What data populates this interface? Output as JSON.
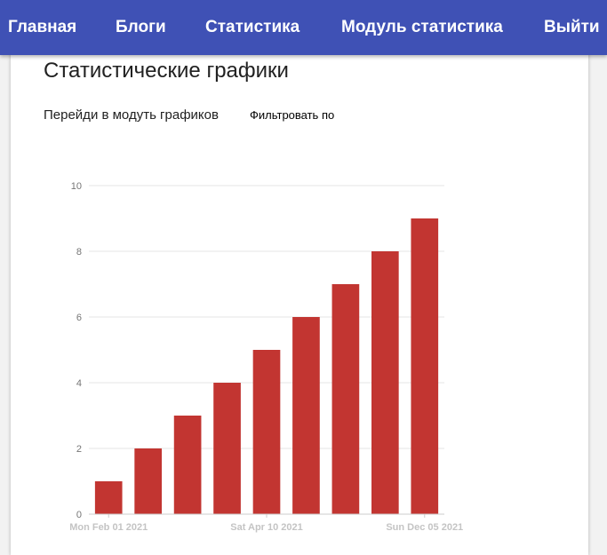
{
  "nav": {
    "items": [
      {
        "label": "Главная"
      },
      {
        "label": "Блоги"
      },
      {
        "label": "Статистика"
      },
      {
        "label": "Модуль статистика"
      },
      {
        "label": "Выйти"
      }
    ]
  },
  "main": {
    "title": "Статистические графики",
    "chart_link": "Перейди в модуть графиков",
    "filter_label": "Фильтровать по"
  },
  "colors": {
    "navbar": "#3f51b5",
    "bar": "#c23531"
  },
  "chart_data": {
    "type": "bar",
    "categories": [
      "Mon Feb 01 2021",
      "",
      "",
      "",
      "Sat Apr 10 2021",
      "",
      "",
      "",
      "Sun Dec 05 2021"
    ],
    "values": [
      1,
      2,
      3,
      4,
      5,
      6,
      7,
      8,
      9
    ],
    "x_tick_labels": [
      "Mon Feb 01 2021",
      "Sat Apr 10 2021",
      "Sun Dec 05 2021"
    ],
    "y_ticks": [
      0,
      2,
      4,
      6,
      8,
      10
    ],
    "ylim": [
      0,
      10
    ],
    "grid": true,
    "title": "",
    "xlabel": "",
    "ylabel": ""
  }
}
